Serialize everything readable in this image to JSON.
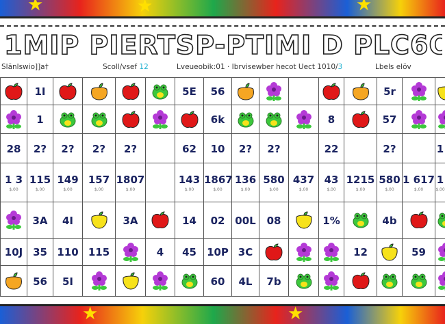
{
  "title": "1MIP PIERTSP-PTIMI D PLC6O",
  "header": {
    "left": "Slänlswio]]a†",
    "score_label": "Scoll/vsef ",
    "score_value": "12",
    "center": "Lveueobik:01 · Ibrvisewber hecot Uect 1010/",
    "center_accent": "3",
    "right": "Lbels elöv"
  },
  "colors": {
    "apple": "#e01818",
    "orange": "#f5a623",
    "lemon": "#f7e21b",
    "flower": "#b43ad6",
    "leaf": "#3cc83c",
    "ink": "#1a2360"
  },
  "grid": {
    "rows": [
      [
        "apple",
        "1I",
        "apple",
        "orange",
        "apple",
        "frog",
        "5E",
        "56",
        "orange",
        "flower",
        "",
        "apple",
        "orange",
        "5r",
        "flower",
        "lemon"
      ],
      [
        "flower",
        "1",
        "frog",
        "frog",
        "apple",
        "flower",
        "apple",
        "6k",
        "frog",
        "frog",
        "flower",
        "8",
        "apple",
        "57",
        "flower",
        "flower"
      ],
      [
        "28",
        "2?",
        "2?",
        "2?",
        "2?",
        "",
        "62",
        "10",
        "2?",
        "2?",
        "",
        "22",
        "",
        "2?",
        "",
        "1"
      ],
      [
        "1 3",
        "115",
        "149",
        "157",
        "1807",
        "",
        "143",
        "1867",
        "136",
        "580",
        "437",
        "43",
        "1215",
        "580",
        "1 617",
        "1"
      ],
      [
        "flower",
        "3A",
        "4I",
        "lemon",
        "3A",
        "apple",
        "14",
        "02",
        "00L",
        "08",
        "lemon",
        "1%",
        "frog",
        "4b",
        "apple",
        "frog"
      ],
      [
        "10J",
        "35",
        "110",
        "115",
        "flower",
        "4",
        "45",
        "10P",
        "3C",
        "apple",
        "flower",
        "flower",
        "12",
        "lemon",
        "59",
        "flower"
      ],
      [
        "orange",
        "56",
        "5I",
        "flower",
        "lemon",
        "flower",
        "frog",
        "60",
        "4L",
        "7b",
        "frog",
        "flower",
        "apple",
        "frog",
        "frog",
        "flower"
      ]
    ],
    "price_sublabel": "$.00"
  }
}
